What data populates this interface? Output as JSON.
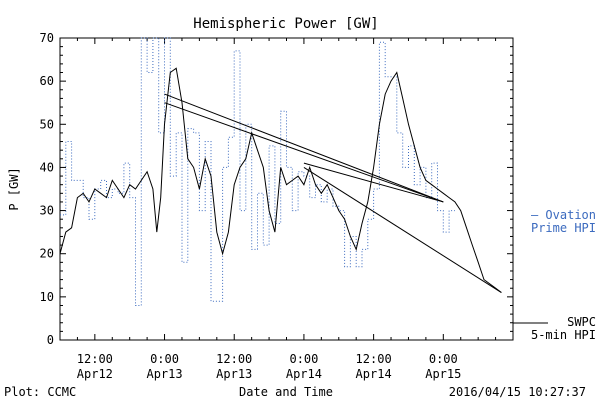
{
  "chart_data": {
    "type": "line",
    "title": "Hemispheric Power [GW]",
    "ylabel": "P [GW]",
    "xlabel": "Date and Time",
    "ylim": [
      0,
      70
    ],
    "yticks": [
      0,
      10,
      20,
      30,
      40,
      50,
      60,
      70
    ],
    "xlim": [
      "2016-04-12 06:00",
      "2016-04-15 12:00"
    ],
    "xticks": [
      {
        "time": "2016-04-12 12:00",
        "label1": "12:00",
        "label2": "Apr12"
      },
      {
        "time": "2016-04-13 00:00",
        "label1": "0:00",
        "label2": "Apr13"
      },
      {
        "time": "2016-04-13 12:00",
        "label1": "12:00",
        "label2": "Apr13"
      },
      {
        "time": "2016-04-14 00:00",
        "label1": "0:00",
        "label2": "Apr14"
      },
      {
        "time": "2016-04-14 12:00",
        "label1": "12:00",
        "label2": "Apr14"
      },
      {
        "time": "2016-04-15 00:00",
        "label1": "0:00",
        "label2": "Apr15"
      }
    ],
    "series": [
      {
        "name": "SWPC 5-min HPI",
        "legend_lines": [
          "SWPC",
          "5-min HPI"
        ],
        "color": "#000000",
        "style": "solid",
        "points": [
          [
            "2016-04-12 06:00",
            20
          ],
          [
            "2016-04-12 07:00",
            25
          ],
          [
            "2016-04-12 08:00",
            26
          ],
          [
            "2016-04-12 09:00",
            33
          ],
          [
            "2016-04-12 10:00",
            34
          ],
          [
            "2016-04-12 11:00",
            32
          ],
          [
            "2016-04-12 12:00",
            35
          ],
          [
            "2016-04-12 13:00",
            34
          ],
          [
            "2016-04-12 14:00",
            33
          ],
          [
            "2016-04-12 15:00",
            37
          ],
          [
            "2016-04-12 16:00",
            35
          ],
          [
            "2016-04-12 17:00",
            33
          ],
          [
            "2016-04-12 18:00",
            36
          ],
          [
            "2016-04-12 19:00",
            35
          ],
          [
            "2016-04-12 20:00",
            37
          ],
          [
            "2016-04-12 21:00",
            39
          ],
          [
            "2016-04-12 22:00",
            35
          ],
          [
            "2016-04-12 22:40",
            25
          ],
          [
            "2016-04-12 23:20",
            33
          ],
          [
            "2016-04-13 00:00",
            50
          ],
          [
            "2016-04-13 01:00",
            62
          ],
          [
            "2016-04-13 02:00",
            63
          ],
          [
            "2016-04-13 03:00",
            55
          ],
          [
            "2016-04-13 04:00",
            42
          ],
          [
            "2016-04-13 05:00",
            40
          ],
          [
            "2016-04-13 06:00",
            35
          ],
          [
            "2016-04-13 07:00",
            42
          ],
          [
            "2016-04-13 08:00",
            38
          ],
          [
            "2016-04-13 09:00",
            25
          ],
          [
            "2016-04-13 10:00",
            20
          ],
          [
            "2016-04-13 11:00",
            25
          ],
          [
            "2016-04-13 12:00",
            36
          ],
          [
            "2016-04-13 13:00",
            40
          ],
          [
            "2016-04-13 14:00",
            42
          ],
          [
            "2016-04-13 15:00",
            48
          ],
          [
            "2016-04-13 16:00",
            44
          ],
          [
            "2016-04-13 17:00",
            40
          ],
          [
            "2016-04-13 18:00",
            30
          ],
          [
            "2016-04-13 19:00",
            25
          ],
          [
            "2016-04-13 20:00",
            40
          ],
          [
            "2016-04-13 21:00",
            36
          ],
          [
            "2016-04-13 22:00",
            37
          ],
          [
            "2016-04-13 23:00",
            38
          ],
          [
            "2016-04-14 00:00",
            36
          ],
          [
            "2016-04-14 01:00",
            40
          ],
          [
            "2016-04-14 02:00",
            36
          ],
          [
            "2016-04-14 03:00",
            34
          ],
          [
            "2016-04-14 04:00",
            36
          ],
          [
            "2016-04-14 05:00",
            33
          ],
          [
            "2016-04-14 06:00",
            30
          ],
          [
            "2016-04-14 07:00",
            28
          ],
          [
            "2016-04-14 08:00",
            24
          ],
          [
            "2016-04-14 09:00",
            21
          ],
          [
            "2016-04-14 10:00",
            27
          ],
          [
            "2016-04-14 11:00",
            32
          ],
          [
            "2016-04-14 12:00",
            40
          ],
          [
            "2016-04-14 13:00",
            50
          ],
          [
            "2016-04-14 14:00",
            57
          ],
          [
            "2016-04-14 15:00",
            60
          ],
          [
            "2016-04-14 16:00",
            62
          ],
          [
            "2016-04-14 17:00",
            56
          ],
          [
            "2016-04-14 18:00",
            50
          ],
          [
            "2016-04-14 19:00",
            45
          ],
          [
            "2016-04-14 20:00",
            40
          ],
          [
            "2016-04-14 21:00",
            37
          ],
          [
            "2016-04-14 22:00",
            36
          ],
          [
            "2016-04-14 23:00",
            35
          ],
          [
            "2016-04-15 00:00",
            34
          ],
          [
            "2016-04-15 01:00",
            33
          ],
          [
            "2016-04-15 02:00",
            32
          ],
          [
            "2016-04-15 03:00",
            30
          ],
          [
            "2016-04-15 04:00",
            26
          ],
          [
            "2016-04-15 05:00",
            22
          ],
          [
            "2016-04-15 06:00",
            18
          ],
          [
            "2016-04-15 07:00",
            14
          ],
          [
            "2016-04-15 08:00",
            13
          ],
          [
            "2016-04-15 09:00",
            12
          ],
          [
            "2016-04-15 10:00",
            11
          ]
        ],
        "extra_lines": [
          [
            [
              "2016-04-13 00:00",
              57
            ],
            [
              "2016-04-15 00:00",
              32
            ]
          ],
          [
            [
              "2016-04-13 00:00",
              55
            ],
            [
              "2016-04-15 00:00",
              32
            ]
          ],
          [
            [
              "2016-04-14 00:00",
              41
            ],
            [
              "2016-04-15 00:00",
              32
            ]
          ],
          [
            [
              "2016-04-14 00:00",
              40
            ],
            [
              "2016-04-15 10:00",
              11
            ]
          ]
        ]
      },
      {
        "name": "Ovation Prime HPI",
        "legend_lines": [
          "— Ovation",
          "Prime HPI"
        ],
        "color": "#3c6bbf",
        "style": "dotted-step",
        "points": [
          [
            "2016-04-12 06:00",
            29
          ],
          [
            "2016-04-12 07:00",
            46
          ],
          [
            "2016-04-12 08:00",
            37
          ],
          [
            "2016-04-12 10:00",
            33
          ],
          [
            "2016-04-12 11:00",
            28
          ],
          [
            "2016-04-12 12:00",
            35
          ],
          [
            "2016-04-12 13:00",
            37
          ],
          [
            "2016-04-12 14:00",
            33
          ],
          [
            "2016-04-12 15:00",
            35
          ],
          [
            "2016-04-12 16:00",
            34
          ],
          [
            "2016-04-12 17:00",
            41
          ],
          [
            "2016-04-12 18:00",
            33
          ],
          [
            "2016-04-12 19:00",
            8
          ],
          [
            "2016-04-12 20:00",
            70
          ],
          [
            "2016-04-12 21:00",
            62
          ],
          [
            "2016-04-12 22:00",
            70
          ],
          [
            "2016-04-12 23:00",
            48
          ],
          [
            "2016-04-13 00:00",
            70
          ],
          [
            "2016-04-13 01:00",
            38
          ],
          [
            "2016-04-13 02:00",
            48
          ],
          [
            "2016-04-13 03:00",
            18
          ],
          [
            "2016-04-13 04:00",
            49
          ],
          [
            "2016-04-13 05:00",
            48
          ],
          [
            "2016-04-13 06:00",
            30
          ],
          [
            "2016-04-13 07:00",
            46
          ],
          [
            "2016-04-13 08:00",
            9
          ],
          [
            "2016-04-13 10:00",
            40
          ],
          [
            "2016-04-13 11:00",
            47
          ],
          [
            "2016-04-13 12:00",
            67
          ],
          [
            "2016-04-13 13:00",
            30
          ],
          [
            "2016-04-13 14:00",
            50
          ],
          [
            "2016-04-13 15:00",
            21
          ],
          [
            "2016-04-13 16:00",
            34
          ],
          [
            "2016-04-13 17:00",
            22
          ],
          [
            "2016-04-13 18:00",
            45
          ],
          [
            "2016-04-13 19:00",
            27
          ],
          [
            "2016-04-13 20:00",
            53
          ],
          [
            "2016-04-13 21:00",
            40
          ],
          [
            "2016-04-13 22:00",
            30
          ],
          [
            "2016-04-13 23:00",
            39
          ],
          [
            "2016-04-14 00:00",
            38
          ],
          [
            "2016-04-14 01:00",
            33
          ],
          [
            "2016-04-14 02:00",
            36
          ],
          [
            "2016-04-14 03:00",
            32
          ],
          [
            "2016-04-14 04:00",
            35
          ],
          [
            "2016-04-14 05:00",
            31
          ],
          [
            "2016-04-14 06:00",
            30
          ],
          [
            "2016-04-14 07:00",
            17
          ],
          [
            "2016-04-14 08:00",
            24
          ],
          [
            "2016-04-14 09:00",
            17
          ],
          [
            "2016-04-14 10:00",
            21
          ],
          [
            "2016-04-14 11:00",
            28
          ],
          [
            "2016-04-14 12:00",
            35
          ],
          [
            "2016-04-14 13:00",
            69
          ],
          [
            "2016-04-14 14:00",
            61
          ],
          [
            "2016-04-14 16:00",
            48
          ],
          [
            "2016-04-14 17:00",
            40
          ],
          [
            "2016-04-14 18:00",
            45
          ],
          [
            "2016-04-14 19:00",
            36
          ],
          [
            "2016-04-14 20:00",
            40
          ],
          [
            "2016-04-14 21:00",
            33
          ],
          [
            "2016-04-14 22:00",
            41
          ],
          [
            "2016-04-14 23:00",
            30
          ],
          [
            "2016-04-15 00:00",
            25
          ],
          [
            "2016-04-15 01:00",
            30
          ]
        ]
      }
    ]
  },
  "footer": {
    "left": "Plot: CCMC",
    "right": "2016/04/15 10:27:37"
  }
}
